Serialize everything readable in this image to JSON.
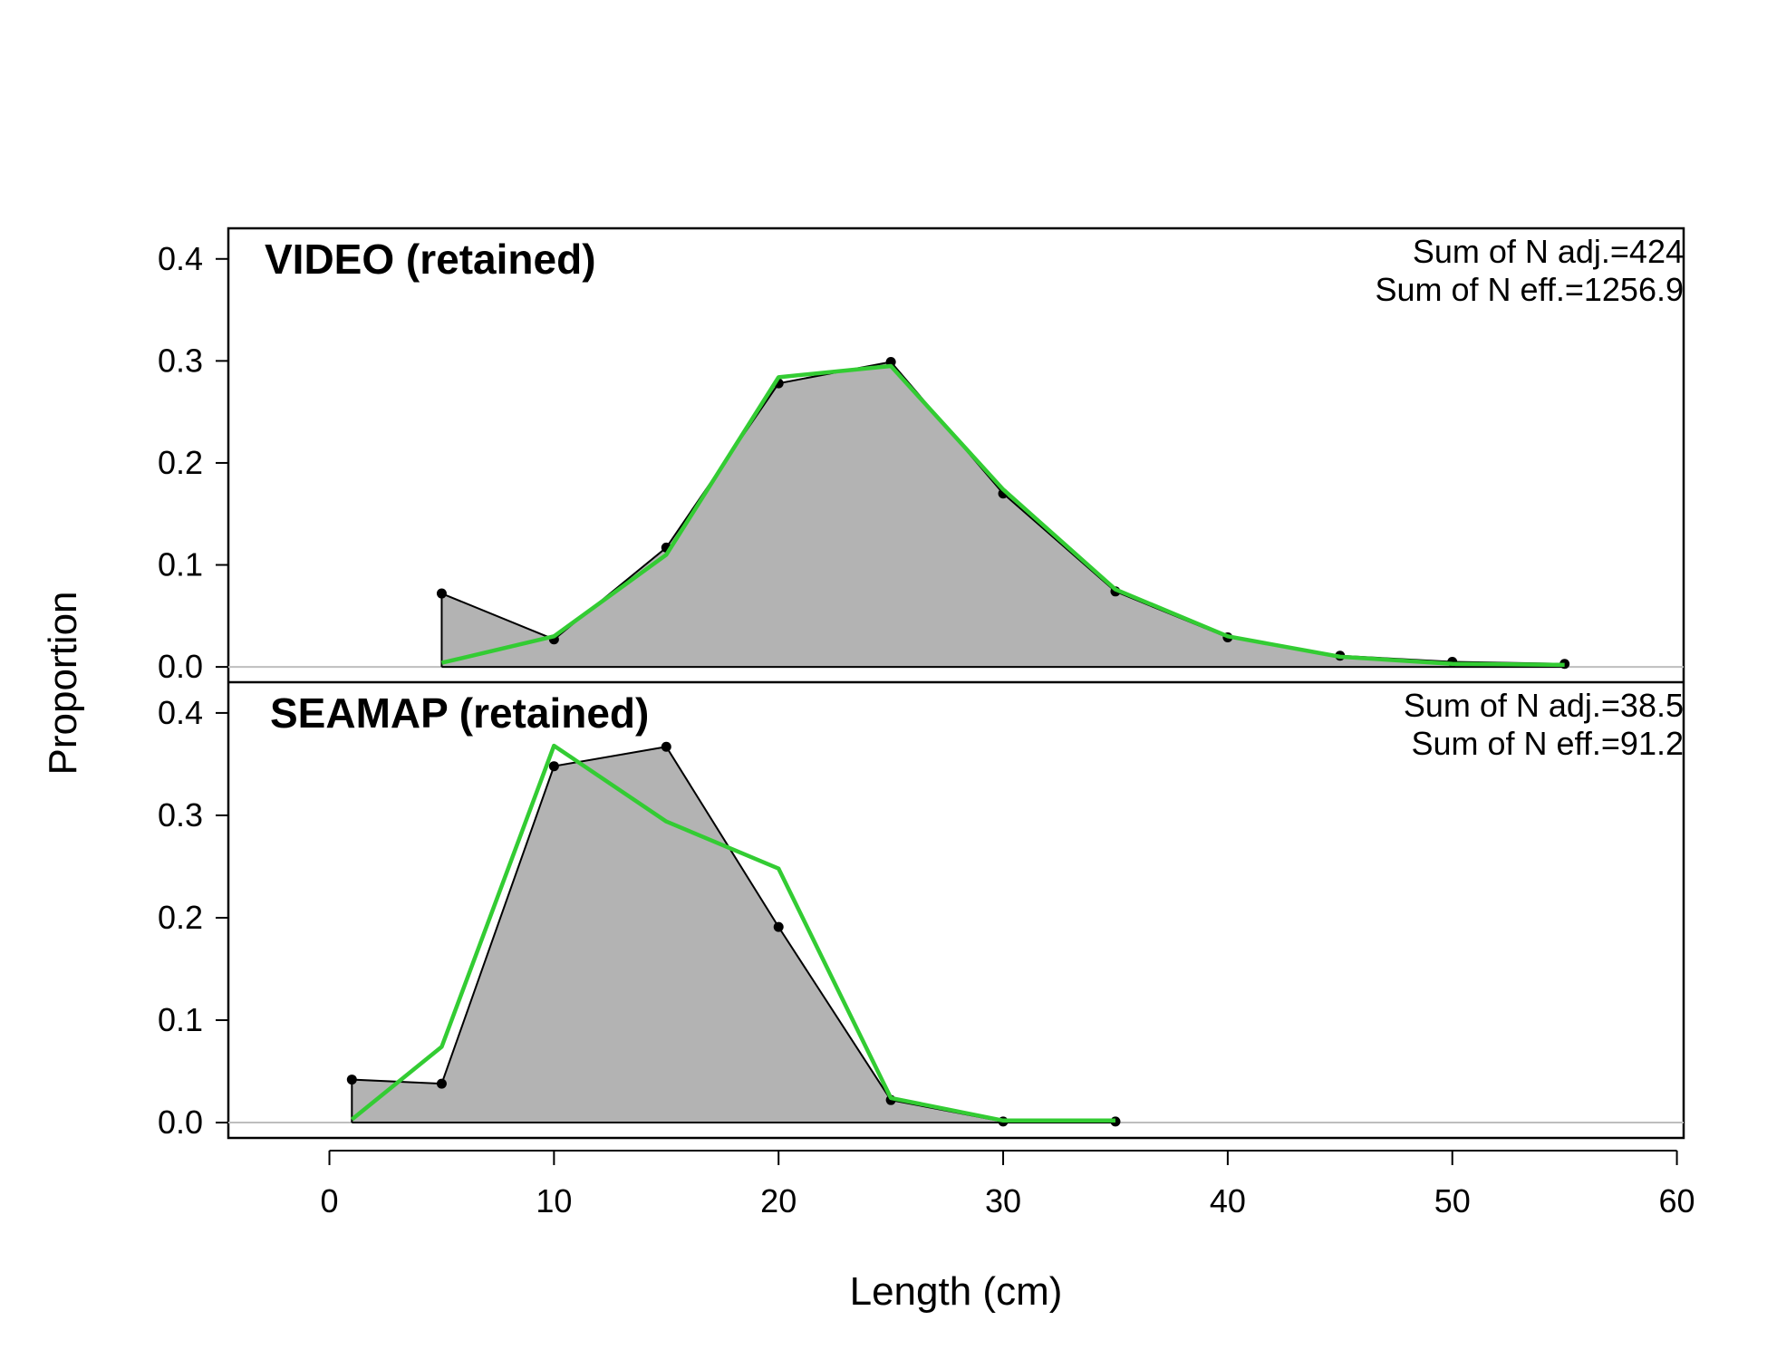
{
  "chart_data": {
    "type": "area",
    "xlabel": "Length (cm)",
    "ylabel": "Proportion",
    "xlim": [
      -4.5,
      60.3
    ],
    "ylim": [
      -0.015,
      0.43
    ],
    "x_ticks": [
      "0",
      "10",
      "20",
      "30",
      "40",
      "50",
      "60"
    ],
    "y_ticks": [
      "0.0",
      "0.1",
      "0.2",
      "0.3",
      "0.4"
    ],
    "colors": {
      "observed_fill": "#b3b3b3",
      "observed_line": "#000000",
      "expected_line": "#33cc33",
      "zero_line": "#bebebe"
    },
    "panels": [
      {
        "title": "VIDEO (retained)",
        "annotations": [
          "Sum of N adj.=424",
          "Sum of N eff.=1256.9"
        ],
        "x": [
          5,
          10,
          15,
          20,
          25,
          30,
          35,
          40,
          45,
          50,
          55
        ],
        "observed": [
          0.072,
          0.027,
          0.117,
          0.278,
          0.299,
          0.17,
          0.074,
          0.029,
          0.011,
          0.005,
          0.003
        ],
        "expected": [
          0.004,
          0.03,
          0.11,
          0.284,
          0.295,
          0.174,
          0.076,
          0.03,
          0.01,
          0.003,
          0.002
        ]
      },
      {
        "title": "SEAMAP (retained)",
        "annotations": [
          "Sum of N adj.=38.5",
          "Sum of N eff.=91.2"
        ],
        "x": [
          1,
          5,
          10,
          15,
          20,
          25,
          30,
          35
        ],
        "observed": [
          0.042,
          0.038,
          0.348,
          0.367,
          0.191,
          0.022,
          0.001,
          0.001
        ],
        "expected": [
          0.003,
          0.074,
          0.368,
          0.294,
          0.248,
          0.024,
          0.002,
          0.002
        ]
      }
    ]
  }
}
